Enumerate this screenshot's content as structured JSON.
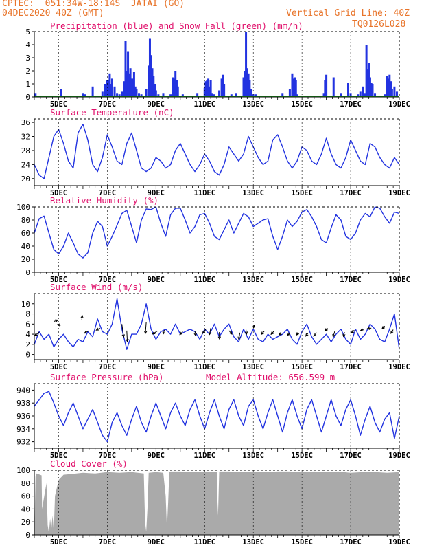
{
  "header": {
    "line1_left": "CPTEC:  051:34W-18:14S  JATAI (GO)",
    "line2_left": "04DEC2020 40Z (GMT)",
    "line2_right": "Vertical Grid Line: 40Z",
    "line3_right": "TQ0126L028"
  },
  "colors": {
    "header": "#e8742a",
    "title": "#e0106b",
    "axis": "#000000",
    "series_line": "#2233e0",
    "precip_bar": "#2233e0",
    "snow": "#22aa22",
    "cloud_fill": "#aaaaaa",
    "wind_arrow": "#000000"
  },
  "x_axis": {
    "tick_labels": [
      "5DEC",
      "7DEC",
      "9DEC",
      "11DEC",
      "13DEC",
      "15DEC",
      "17DEC",
      "19DEC"
    ],
    "tick_days": [
      5,
      7,
      9,
      11,
      13,
      15,
      17,
      19
    ],
    "range_days": [
      4.0,
      19.0
    ]
  },
  "chart_data": [
    {
      "id": "precip",
      "type": "bar",
      "title": "Precipitation (blue) and Snow Fall (green) (mm/h)",
      "ylim": [
        0,
        5
      ],
      "yticks": [
        0,
        1,
        2,
        3,
        4,
        5
      ],
      "x": [
        4.05,
        4.5,
        5.1,
        6.0,
        6.1,
        6.2,
        6.4,
        6.8,
        6.9,
        7.0,
        7.05,
        7.1,
        7.15,
        7.2,
        7.3,
        7.4,
        7.5,
        7.6,
        7.7,
        7.75,
        7.8,
        7.85,
        7.9,
        7.95,
        8.0,
        8.05,
        8.1,
        8.15,
        8.2,
        8.3,
        8.4,
        8.6,
        8.7,
        8.75,
        8.8,
        8.85,
        8.9,
        8.95,
        9.0,
        9.1,
        9.2,
        9.3,
        9.6,
        9.7,
        9.75,
        9.8,
        9.85,
        9.9,
        10.0,
        10.1,
        10.3,
        10.7,
        11.0,
        11.05,
        11.1,
        11.15,
        11.2,
        11.25,
        11.3,
        11.4,
        11.6,
        11.7,
        11.75,
        11.8,
        12.1,
        12.3,
        12.6,
        12.65,
        12.7,
        12.75,
        12.8,
        12.85,
        12.9,
        13.0,
        13.1,
        13.3,
        14.2,
        14.5,
        14.6,
        14.65,
        14.7,
        14.75,
        14.8,
        15.9,
        15.95,
        16.0,
        16.3,
        16.6,
        16.9,
        17.0,
        17.3,
        17.4,
        17.5,
        17.6,
        17.65,
        17.7,
        17.75,
        17.8,
        17.85,
        17.9,
        18.0,
        18.4,
        18.5,
        18.55,
        18.6,
        18.65,
        18.7,
        18.8,
        18.9
      ],
      "values": [
        0.3,
        0.1,
        0.6,
        0.3,
        0.2,
        0.1,
        0.8,
        0.4,
        1.0,
        1.3,
        1.3,
        1.8,
        1.0,
        1.4,
        0.8,
        0.3,
        0.2,
        0.4,
        1.2,
        4.3,
        2.0,
        3.5,
        1.8,
        2.2,
        1.4,
        1.4,
        1.9,
        0.8,
        0.6,
        0.3,
        0.2,
        0.6,
        2.4,
        4.5,
        3.2,
        2.2,
        1.6,
        1.0,
        0.5,
        0.2,
        0.1,
        0.3,
        0.2,
        1.5,
        1.4,
        2.0,
        1.3,
        0.8,
        0.1,
        0.2,
        0.1,
        0.3,
        0.7,
        1.2,
        1.3,
        1.4,
        0.8,
        1.3,
        0.3,
        0.2,
        0.5,
        1.4,
        1.7,
        1.0,
        0.2,
        0.3,
        1.5,
        2.0,
        5.0,
        2.2,
        1.8,
        1.3,
        0.6,
        0.2,
        0.2,
        0.1,
        0.3,
        0.6,
        1.8,
        1.4,
        1.5,
        1.3,
        0.2,
        0.3,
        1.3,
        1.7,
        1.5,
        0.3,
        1.1,
        0.3,
        0.2,
        0.4,
        0.8,
        0.3,
        4.0,
        2.1,
        2.6,
        1.5,
        1.1,
        1.0,
        0.3,
        0.2,
        1.6,
        1.4,
        1.7,
        1.2,
        0.6,
        0.8,
        0.4
      ],
      "snow_line": 0
    },
    {
      "id": "temp",
      "type": "line",
      "title": "Surface Temperature (nC)",
      "ylim": [
        18,
        37
      ],
      "yticks": [
        20,
        24,
        28,
        32,
        36
      ],
      "x": [
        4.0,
        4.2,
        4.4,
        4.6,
        4.8,
        5.0,
        5.2,
        5.4,
        5.6,
        5.8,
        6.0,
        6.2,
        6.4,
        6.6,
        6.8,
        7.0,
        7.2,
        7.4,
        7.6,
        7.8,
        8.0,
        8.2,
        8.4,
        8.6,
        8.8,
        9.0,
        9.2,
        9.4,
        9.6,
        9.8,
        10.0,
        10.2,
        10.4,
        10.6,
        10.8,
        11.0,
        11.2,
        11.4,
        11.6,
        11.8,
        12.0,
        12.2,
        12.4,
        12.6,
        12.8,
        13.0,
        13.2,
        13.4,
        13.6,
        13.8,
        14.0,
        14.2,
        14.4,
        14.6,
        14.8,
        15.0,
        15.2,
        15.4,
        15.6,
        15.8,
        16.0,
        16.2,
        16.4,
        16.6,
        16.8,
        17.0,
        17.2,
        17.4,
        17.6,
        17.8,
        18.0,
        18.2,
        18.4,
        18.6,
        18.8,
        19.0
      ],
      "values": [
        24,
        21,
        20,
        26,
        32,
        34,
        30,
        25,
        23,
        33,
        35.5,
        31,
        24,
        22,
        26,
        32.5,
        29,
        25,
        24,
        30,
        33,
        28,
        23,
        22,
        23,
        26,
        25,
        23,
        24,
        28,
        30,
        27,
        24,
        22,
        24,
        27,
        25,
        22,
        21,
        24,
        29,
        27,
        25,
        27,
        32,
        29,
        26,
        24,
        25,
        31,
        32.5,
        29,
        25,
        23,
        25,
        29,
        28,
        25,
        24,
        27,
        31.5,
        27,
        24,
        23,
        26,
        31,
        28,
        25,
        24,
        30,
        29,
        26,
        24,
        23,
        26,
        24
      ]
    },
    {
      "id": "rh",
      "type": "line",
      "title": "Relative Humidity (%)",
      "ylim": [
        0,
        100
      ],
      "yticks": [
        0,
        20,
        40,
        60,
        80,
        100
      ],
      "x": [
        4.0,
        4.2,
        4.4,
        4.6,
        4.8,
        5.0,
        5.2,
        5.4,
        5.6,
        5.8,
        6.0,
        6.2,
        6.4,
        6.6,
        6.8,
        7.0,
        7.2,
        7.4,
        7.6,
        7.8,
        8.0,
        8.2,
        8.4,
        8.6,
        8.8,
        9.0,
        9.2,
        9.4,
        9.6,
        9.8,
        10.0,
        10.2,
        10.4,
        10.6,
        10.8,
        11.0,
        11.2,
        11.4,
        11.6,
        11.8,
        12.0,
        12.2,
        12.4,
        12.6,
        12.8,
        13.0,
        13.2,
        13.4,
        13.6,
        13.8,
        14.0,
        14.2,
        14.4,
        14.6,
        14.8,
        15.0,
        15.2,
        15.4,
        15.6,
        15.8,
        16.0,
        16.2,
        16.4,
        16.6,
        16.8,
        17.0,
        17.2,
        17.4,
        17.6,
        17.8,
        18.0,
        18.2,
        18.4,
        18.6,
        18.8,
        19.0
      ],
      "values": [
        60,
        82,
        86,
        60,
        35,
        28,
        40,
        60,
        45,
        28,
        22,
        30,
        60,
        78,
        70,
        40,
        55,
        72,
        90,
        95,
        70,
        45,
        80,
        97,
        96,
        100,
        75,
        55,
        88,
        98,
        98,
        80,
        60,
        70,
        88,
        90,
        75,
        55,
        50,
        65,
        80,
        60,
        75,
        90,
        85,
        70,
        75,
        80,
        82,
        55,
        35,
        55,
        80,
        70,
        78,
        92,
        96,
        85,
        70,
        50,
        45,
        68,
        88,
        80,
        55,
        50,
        60,
        80,
        90,
        85,
        100,
        98,
        85,
        75,
        92,
        90
      ]
    },
    {
      "id": "wind",
      "type": "line",
      "title": "Surface Wind (m/s)",
      "ylim": [
        -1,
        12
      ],
      "yticks": [
        0,
        2,
        4,
        6,
        8,
        10
      ],
      "x": [
        4.0,
        4.2,
        4.4,
        4.6,
        4.8,
        5.0,
        5.2,
        5.4,
        5.6,
        5.8,
        6.0,
        6.2,
        6.4,
        6.6,
        6.8,
        7.0,
        7.2,
        7.4,
        7.6,
        7.8,
        8.0,
        8.2,
        8.4,
        8.6,
        8.8,
        9.0,
        9.2,
        9.4,
        9.6,
        9.8,
        10.0,
        10.2,
        10.4,
        10.6,
        10.8,
        11.0,
        11.2,
        11.4,
        11.6,
        11.8,
        12.0,
        12.2,
        12.4,
        12.6,
        12.8,
        13.0,
        13.2,
        13.4,
        13.6,
        13.8,
        14.0,
        14.2,
        14.4,
        14.6,
        14.8,
        15.0,
        15.2,
        15.4,
        15.6,
        15.8,
        16.0,
        16.2,
        16.4,
        16.6,
        16.8,
        17.0,
        17.2,
        17.4,
        17.6,
        17.8,
        18.0,
        18.2,
        18.4,
        18.6,
        18.8,
        19.0
      ],
      "values": [
        2,
        4.5,
        3,
        4,
        1.5,
        3,
        4,
        2.5,
        1.5,
        3,
        2.5,
        4.5,
        3.5,
        7,
        4.5,
        4,
        6,
        11,
        5,
        1,
        4,
        4,
        6,
        10,
        5,
        3,
        4.5,
        5,
        4,
        6,
        4,
        4.5,
        5,
        4.5,
        3,
        5,
        4,
        6,
        3.5,
        5,
        6,
        3.5,
        2.5,
        5,
        3,
        5,
        3,
        2.5,
        4,
        3,
        3.5,
        4,
        5,
        3,
        2,
        4.5,
        6,
        3.5,
        2,
        3,
        4,
        2.5,
        4,
        5,
        3,
        2,
        5,
        3,
        4,
        6,
        5,
        3,
        2.5,
        5,
        8,
        1
      ]
    },
    {
      "id": "pres",
      "type": "line",
      "title": "Surface Pressure (hPa)",
      "annotation": "Model Altitude: 656.599 m",
      "ylim": [
        931,
        941
      ],
      "yticks": [
        932,
        934,
        936,
        938,
        940
      ],
      "x": [
        4.0,
        4.2,
        4.4,
        4.6,
        4.8,
        5.0,
        5.2,
        5.4,
        5.6,
        5.8,
        6.0,
        6.2,
        6.4,
        6.6,
        6.8,
        7.0,
        7.2,
        7.4,
        7.6,
        7.8,
        8.0,
        8.2,
        8.4,
        8.6,
        8.8,
        9.0,
        9.2,
        9.4,
        9.6,
        9.8,
        10.0,
        10.2,
        10.4,
        10.6,
        10.8,
        11.0,
        11.2,
        11.4,
        11.6,
        11.8,
        12.0,
        12.2,
        12.4,
        12.6,
        12.8,
        13.0,
        13.2,
        13.4,
        13.6,
        13.8,
        14.0,
        14.2,
        14.4,
        14.6,
        14.8,
        15.0,
        15.2,
        15.4,
        15.6,
        15.8,
        16.0,
        16.2,
        16.4,
        16.6,
        16.8,
        17.0,
        17.2,
        17.4,
        17.6,
        17.8,
        18.0,
        18.2,
        18.4,
        18.6,
        18.8,
        19.0
      ],
      "values": [
        937.5,
        938.5,
        939.5,
        939.8,
        938,
        936,
        934.5,
        936.5,
        938,
        936,
        934,
        935.5,
        937,
        935,
        933,
        932,
        935,
        936.5,
        934.5,
        933,
        935.5,
        937.5,
        935,
        933.5,
        936,
        938,
        936,
        934,
        936.5,
        938,
        936,
        934.5,
        937,
        938.5,
        936,
        934,
        936.5,
        938.5,
        936,
        934,
        937,
        938.5,
        936,
        934.5,
        937.5,
        938.5,
        936,
        934,
        936.5,
        938.5,
        936,
        933.5,
        936.5,
        938.5,
        936,
        934,
        937,
        938.5,
        936,
        933.5,
        936,
        938.5,
        936,
        934.5,
        937,
        938.5,
        936,
        933,
        935.5,
        937.5,
        935,
        933.5,
        935.5,
        936.5,
        932.5,
        936
      ]
    },
    {
      "id": "cloud",
      "type": "area",
      "title": "Cloud Cover (%)",
      "ylim": [
        0,
        100
      ],
      "yticks": [
        0,
        20,
        40,
        60,
        80,
        100
      ],
      "x": [
        4.0,
        4.05,
        4.1,
        4.3,
        4.32,
        4.5,
        4.55,
        4.6,
        4.65,
        4.7,
        4.75,
        4.8,
        4.85,
        5.0,
        5.2,
        5.5,
        6.0,
        6.5,
        7.0,
        7.5,
        8.0,
        8.5,
        8.55,
        8.6,
        8.65,
        8.7,
        9.0,
        9.3,
        9.4,
        9.45,
        9.5,
        9.55,
        9.6,
        10.0,
        10.5,
        11.0,
        11.5,
        11.52,
        11.55,
        11.6,
        12.0,
        12.5,
        13.0,
        13.5,
        14.0,
        14.5,
        15.0,
        15.5,
        16.0,
        16.5,
        17.0,
        17.5,
        18.0,
        18.5,
        19.0
      ],
      "values": [
        0,
        90,
        95,
        92,
        40,
        80,
        15,
        3,
        25,
        8,
        30,
        5,
        60,
        85,
        93,
        94,
        96,
        95,
        97,
        96,
        97,
        95,
        20,
        5,
        40,
        96,
        97,
        96,
        60,
        10,
        50,
        97,
        98,
        98,
        97,
        98,
        97,
        60,
        30,
        98,
        98,
        97,
        98,
        97,
        98,
        98,
        97,
        98,
        97,
        98,
        96,
        97,
        97,
        96,
        97
      ]
    }
  ],
  "wind_arrows": {
    "x": [
      4.2,
      4.8,
      5.1,
      5.95,
      6.25,
      6.7,
      7.6,
      7.8,
      8.6,
      9.05,
      9.35,
      10.1,
      10.6,
      11.05,
      11.25,
      11.6,
      12.0,
      12.45,
      12.7,
      13.0,
      13.45,
      13.85,
      14.15,
      14.5,
      14.85,
      15.25,
      15.6,
      16.05,
      16.35,
      16.75,
      17.15,
      17.55,
      17.85,
      18.4,
      18.75
    ],
    "y": [
      4.4,
      6.5,
      5.8,
      6.8,
      4.7,
      5.2,
      6.0,
      4.7,
      6.4,
      4.6,
      4.8,
      4.5,
      4.6,
      5.0,
      5.2,
      4.4,
      4.7,
      4.3,
      4.9,
      5.2,
      4.6,
      4.6,
      4.2,
      4.2,
      4.3,
      4.2,
      4.3,
      5.2,
      4.6,
      4.4,
      4.8,
      5.0,
      5.2,
      5.6,
      4.9
    ],
    "u": [
      -1.5,
      1.4,
      -1.2,
      0.2,
      -1.6,
      -1.3,
      0.6,
      0.2,
      -0.3,
      -1.6,
      -0.5,
      -1.0,
      0.3,
      -1.1,
      -0.4,
      0.1,
      1.0,
      -0.4,
      0.2,
      0.4,
      -1.0,
      -1.0,
      -0.8,
      -0.8,
      -0.6,
      -0.8,
      -1.0,
      -0.8,
      -0.6,
      -0.4,
      -1.0,
      -1.2,
      -1.4,
      -0.9,
      -0.8
    ],
    "v": [
      -1.2,
      0.5,
      0.2,
      1.5,
      -0.9,
      -0.7,
      -4.5,
      -3.8,
      -4.0,
      -1.0,
      -1.4,
      -1.0,
      -1.6,
      -1.5,
      -2.2,
      -2.4,
      -1.2,
      -2.3,
      -1.6,
      1.0,
      -1.1,
      -1.1,
      -0.6,
      -0.7,
      -0.8,
      -1.0,
      -1.2,
      -1.0,
      -2.0,
      -1.5,
      -1.0,
      -0.5,
      -0.2,
      -0.9,
      -1.3
    ]
  }
}
